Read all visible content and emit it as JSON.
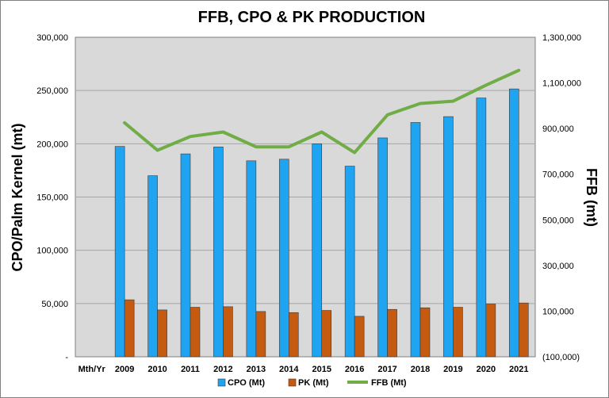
{
  "chart_data": {
    "type": "bar",
    "title": "FFB, CPO & PK PRODUCTION",
    "ylabel": "CPO/Palm Kernel (mt)",
    "y2label": "FFB (mt)",
    "xlabel": "",
    "first_category_label": "Mth/Yr",
    "categories": [
      "2009",
      "2010",
      "2011",
      "2012",
      "2013",
      "2014",
      "2015",
      "2016",
      "2017",
      "2018",
      "2019",
      "2020",
      "2021"
    ],
    "ylim": [
      0,
      300000
    ],
    "y2lim": [
      -100000,
      1300000
    ],
    "y_ticks": [
      "-",
      "50,000",
      "100,000",
      "150,000",
      "200,000",
      "250,000",
      "300,000"
    ],
    "y2_ticks": [
      "(100,000)",
      "100,000",
      "300,000",
      "500,000",
      "700,000",
      "900,000",
      "1,100,000",
      "1,300,000"
    ],
    "grid": true,
    "series": [
      {
        "name": "CPO (Mt)",
        "type": "bar",
        "axis": "left",
        "color": "#1ea4f0",
        "values": [
          197500,
          170000,
          190500,
          197000,
          184000,
          185500,
          200000,
          179000,
          205500,
          220000,
          225500,
          243000,
          251500
        ]
      },
      {
        "name": "PK (Mt)",
        "type": "bar",
        "axis": "left",
        "color": "#c55a11",
        "values": [
          53500,
          44000,
          46500,
          47000,
          42500,
          41500,
          43500,
          38000,
          44500,
          46000,
          46500,
          49500,
          50500
        ]
      },
      {
        "name": "FFB (Mt)",
        "type": "line",
        "axis": "right",
        "color": "#70ad47",
        "values": [
          925000,
          805000,
          865000,
          885000,
          820000,
          820000,
          885000,
          795000,
          960000,
          1010000,
          1020000,
          1090000,
          1155000
        ]
      }
    ],
    "legend_position": "bottom"
  }
}
